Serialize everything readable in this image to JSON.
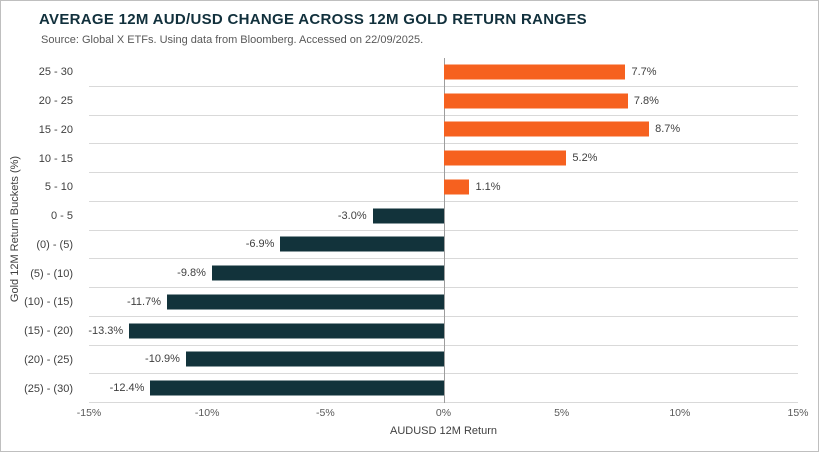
{
  "header": {
    "title": "AVERAGE 12M AUD/USD CHANGE ACROSS 12M GOLD RETURN RANGES",
    "source": "Source: Global X ETFs. Using data from Bloomberg. Accessed on 22/09/2025."
  },
  "chart_data": {
    "type": "bar",
    "orientation": "horizontal",
    "title": "AVERAGE 12M AUD/USD CHANGE ACROSS 12M GOLD RETURN RANGES",
    "subtitle": "Source: Global X ETFs. Using data from Bloomberg. Accessed on 22/09/2025.",
    "categories": [
      "25 - 30",
      "20 - 25",
      "15 - 20",
      "10 - 15",
      "5 - 10",
      "0 - 5",
      "(0) - (5)",
      "(5) - (10)",
      "(10) - (15)",
      "(15) - (20)",
      "(20) - (25)",
      "(25) - (30)"
    ],
    "values": [
      7.7,
      7.8,
      8.7,
      5.2,
      1.1,
      -3.0,
      -6.9,
      -9.8,
      -11.7,
      -13.3,
      -10.9,
      -12.4
    ],
    "value_labels": [
      "7.7%",
      "7.8%",
      "8.7%",
      "5.2%",
      "1.1%",
      "-3.0%",
      "-6.9%",
      "-9.8%",
      "-11.7%",
      "-13.3%",
      "-10.9%",
      "-12.4%"
    ],
    "xlabel": "AUDUSD 12M Return",
    "ylabel": "Gold 12M Return Buckets (%)",
    "xlim": [
      -15,
      15
    ],
    "xticks": [
      -15,
      -10,
      -5,
      0,
      5,
      10,
      15
    ],
    "xtick_labels": [
      "-15%",
      "-10%",
      "-5%",
      "0%",
      "5%",
      "10%",
      "15%"
    ],
    "colors": {
      "positive_bar": "#F6611F",
      "negative_bar": "#12333B",
      "title_text": "#11303C",
      "gridline": "#D9D9D9",
      "zero_line": "#9D9D9D"
    },
    "grid": "horizontal category separators",
    "legend": "none"
  }
}
